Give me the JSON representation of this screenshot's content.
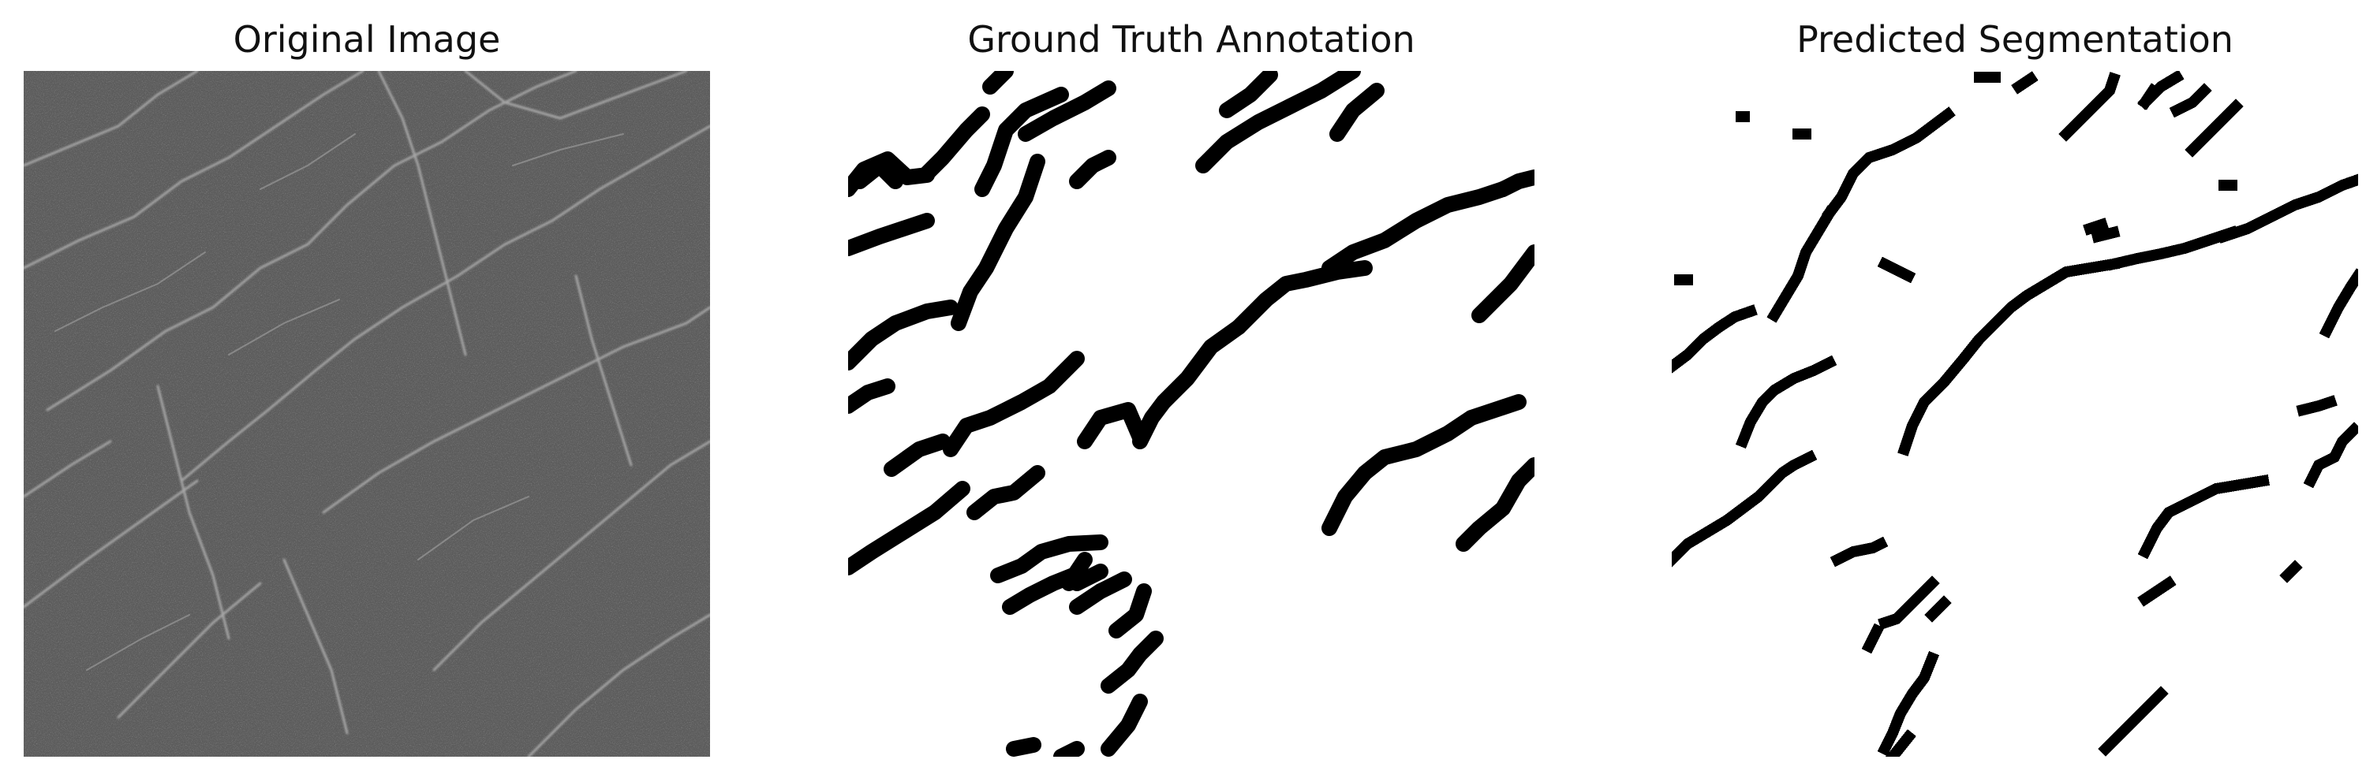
{
  "panels": [
    {
      "title": "Original Image"
    },
    {
      "title": "Ground Truth Annotation"
    },
    {
      "title": "Predicted Segmentation"
    }
  ],
  "colors": {
    "background": "#ffffff",
    "title_text": "#111111",
    "original_base": "#5e5e5e",
    "crack_highlight": "#b5b5b5",
    "mask_foreground": "#000000",
    "mask_background": "#ffffff"
  }
}
